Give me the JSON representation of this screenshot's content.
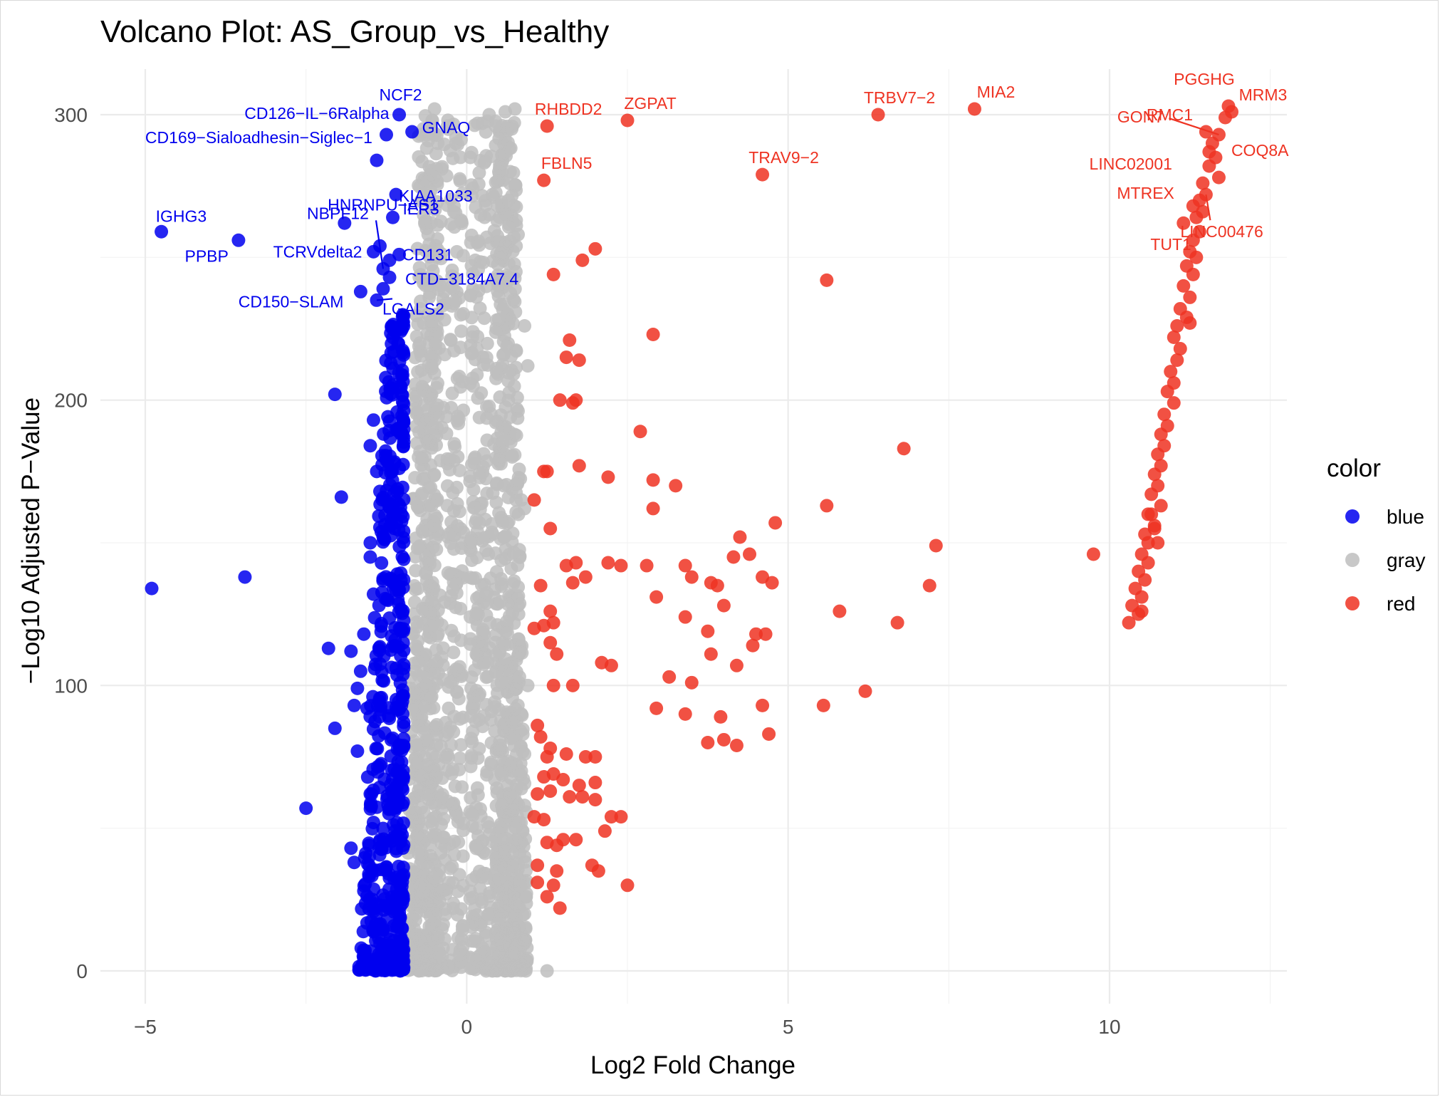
{
  "chart_data": {
    "type": "scatter",
    "title": "Volcano Plot: AS_Group_vs_Healthy",
    "xlabel": "Log2 Fold Change",
    "ylabel": "−Log10 Adjusted P−Value",
    "xlim": [
      -5.7,
      12.7
    ],
    "ylim": [
      -13,
      315
    ],
    "x_ticks": [
      -5,
      0,
      5,
      10
    ],
    "x_tick_labels": [
      "−5",
      "0",
      "5",
      "10"
    ],
    "y_ticks": [
      0,
      100,
      200,
      300
    ],
    "y_tick_labels": [
      "0",
      "100",
      "200",
      "300"
    ],
    "grid": true,
    "legend": {
      "title": "color",
      "position": "right",
      "entries": [
        {
          "label": "blue",
          "color": "#0000ee"
        },
        {
          "label": "gray",
          "color": "#bebebe"
        },
        {
          "label": "red",
          "color": "#ee3322"
        }
      ]
    },
    "colors": {
      "blue": "#0000ee",
      "gray": "#bebebe",
      "red": "#ee3322"
    },
    "series": [
      {
        "name": "red",
        "points": [
          [
            1.25,
            296
          ],
          [
            2.5,
            298
          ],
          [
            6.4,
            300
          ],
          [
            7.9,
            302
          ],
          [
            4.6,
            279
          ],
          [
            1.2,
            277
          ],
          [
            1.35,
            244
          ],
          [
            1.8,
            249
          ],
          [
            2.0,
            253
          ],
          [
            5.6,
            242
          ],
          [
            2.9,
            223
          ],
          [
            1.6,
            221
          ],
          [
            1.55,
            215
          ],
          [
            1.75,
            214
          ],
          [
            1.45,
            200
          ],
          [
            1.65,
            199
          ],
          [
            1.7,
            200
          ],
          [
            2.7,
            189
          ],
          [
            6.8,
            183
          ],
          [
            1.2,
            175
          ],
          [
            1.25,
            175
          ],
          [
            1.75,
            177
          ],
          [
            2.2,
            173
          ],
          [
            2.9,
            172
          ],
          [
            3.25,
            170
          ],
          [
            1.05,
            165
          ],
          [
            2.9,
            162
          ],
          [
            5.6,
            163
          ],
          [
            4.8,
            157
          ],
          [
            1.3,
            155
          ],
          [
            4.25,
            152
          ],
          [
            7.3,
            149
          ],
          [
            4.4,
            146
          ],
          [
            4.15,
            145
          ],
          [
            1.55,
            142
          ],
          [
            1.7,
            143
          ],
          [
            2.2,
            143
          ],
          [
            2.4,
            142
          ],
          [
            2.8,
            142
          ],
          [
            3.4,
            142
          ],
          [
            1.15,
            135
          ],
          [
            1.65,
            136
          ],
          [
            1.85,
            138
          ],
          [
            3.5,
            138
          ],
          [
            3.8,
            136
          ],
          [
            3.9,
            135
          ],
          [
            4.6,
            138
          ],
          [
            4.75,
            136
          ],
          [
            7.2,
            135
          ],
          [
            2.95,
            131
          ],
          [
            4.0,
            128
          ],
          [
            5.8,
            126
          ],
          [
            1.3,
            126
          ],
          [
            1.05,
            120
          ],
          [
            1.2,
            121
          ],
          [
            1.35,
            122
          ],
          [
            3.4,
            124
          ],
          [
            3.75,
            119
          ],
          [
            4.5,
            118
          ],
          [
            4.65,
            118
          ],
          [
            6.7,
            122
          ],
          [
            1.3,
            115
          ],
          [
            1.4,
            111
          ],
          [
            3.8,
            111
          ],
          [
            4.45,
            114
          ],
          [
            2.1,
            108
          ],
          [
            2.25,
            107
          ],
          [
            4.2,
            107
          ],
          [
            1.35,
            100
          ],
          [
            1.65,
            100
          ],
          [
            3.15,
            103
          ],
          [
            3.5,
            101
          ],
          [
            6.2,
            98
          ],
          [
            2.95,
            92
          ],
          [
            3.4,
            90
          ],
          [
            3.95,
            89
          ],
          [
            4.6,
            93
          ],
          [
            5.55,
            93
          ],
          [
            4.7,
            83
          ],
          [
            3.75,
            80
          ],
          [
            4.0,
            81
          ],
          [
            4.2,
            79
          ],
          [
            1.1,
            86
          ],
          [
            1.15,
            82
          ],
          [
            1.3,
            78
          ],
          [
            1.25,
            75
          ],
          [
            1.55,
            76
          ],
          [
            1.85,
            75
          ],
          [
            2.0,
            75
          ],
          [
            1.2,
            68
          ],
          [
            1.35,
            69
          ],
          [
            1.5,
            67
          ],
          [
            1.75,
            65
          ],
          [
            2.0,
            66
          ],
          [
            1.1,
            62
          ],
          [
            1.3,
            63
          ],
          [
            1.6,
            61
          ],
          [
            1.8,
            61
          ],
          [
            2.0,
            60
          ],
          [
            1.05,
            54
          ],
          [
            1.2,
            53
          ],
          [
            2.25,
            54
          ],
          [
            2.4,
            54
          ],
          [
            1.25,
            45
          ],
          [
            1.4,
            44
          ],
          [
            1.5,
            46
          ],
          [
            1.7,
            46
          ],
          [
            2.15,
            49
          ],
          [
            1.1,
            37
          ],
          [
            1.4,
            35
          ],
          [
            1.95,
            37
          ],
          [
            2.05,
            35
          ],
          [
            1.1,
            31
          ],
          [
            1.35,
            30
          ],
          [
            2.5,
            30
          ],
          [
            1.25,
            26
          ],
          [
            1.45,
            22
          ],
          [
            9.75,
            146
          ],
          [
            11.85,
            303
          ],
          [
            11.9,
            301
          ],
          [
            11.8,
            299
          ],
          [
            11.7,
            293
          ],
          [
            11.6,
            290
          ],
          [
            11.5,
            294
          ],
          [
            11.65,
            285
          ],
          [
            11.55,
            282
          ],
          [
            11.7,
            278
          ],
          [
            11.45,
            276
          ],
          [
            11.5,
            272
          ],
          [
            11.4,
            270
          ],
          [
            11.45,
            266
          ],
          [
            11.35,
            264
          ],
          [
            11.4,
            259
          ],
          [
            11.3,
            256
          ],
          [
            11.25,
            252
          ],
          [
            11.35,
            250
          ],
          [
            11.2,
            247
          ],
          [
            11.3,
            244
          ],
          [
            11.15,
            240
          ],
          [
            11.25,
            236
          ],
          [
            11.1,
            232
          ],
          [
            11.2,
            229
          ],
          [
            11.05,
            226
          ],
          [
            11.25,
            227
          ],
          [
            11.0,
            222
          ],
          [
            11.1,
            218
          ],
          [
            11.05,
            214
          ],
          [
            10.95,
            210
          ],
          [
            11.0,
            206
          ],
          [
            10.9,
            203
          ],
          [
            11.0,
            199
          ],
          [
            10.85,
            195
          ],
          [
            10.9,
            191
          ],
          [
            10.8,
            188
          ],
          [
            10.85,
            184
          ],
          [
            10.75,
            181
          ],
          [
            10.8,
            177
          ],
          [
            10.7,
            174
          ],
          [
            10.75,
            170
          ],
          [
            10.65,
            167
          ],
          [
            10.8,
            163
          ],
          [
            10.6,
            160
          ],
          [
            10.7,
            156
          ],
          [
            10.55,
            153
          ],
          [
            10.6,
            150
          ],
          [
            10.75,
            150
          ],
          [
            10.5,
            146
          ],
          [
            10.6,
            143
          ],
          [
            10.45,
            140
          ],
          [
            10.55,
            137
          ],
          [
            10.4,
            134
          ],
          [
            10.5,
            131
          ],
          [
            10.35,
            128
          ],
          [
            10.45,
            125
          ],
          [
            10.3,
            122
          ],
          [
            10.5,
            126
          ],
          [
            10.7,
            155
          ],
          [
            10.65,
            160
          ],
          [
            11.15,
            262
          ],
          [
            11.3,
            268
          ],
          [
            11.55,
            287
          ]
        ]
      },
      {
        "name": "blue",
        "points": [
          [
            -4.75,
            259
          ],
          [
            -3.55,
            256
          ],
          [
            -1.05,
            300
          ],
          [
            -0.85,
            294
          ],
          [
            -1.25,
            293
          ],
          [
            -1.4,
            284
          ],
          [
            -1.1,
            272
          ],
          [
            -1.15,
            264
          ],
          [
            -1.9,
            262
          ],
          [
            -1.35,
            254
          ],
          [
            -1.45,
            252
          ],
          [
            -1.2,
            249
          ],
          [
            -1.05,
            251
          ],
          [
            -1.3,
            246
          ],
          [
            -1.2,
            243
          ],
          [
            -1.65,
            238
          ],
          [
            -1.3,
            239
          ],
          [
            -1.4,
            235
          ],
          [
            -4.9,
            134
          ],
          [
            -3.45,
            138
          ],
          [
            -2.05,
            202
          ],
          [
            -1.95,
            166
          ],
          [
            -2.15,
            113
          ],
          [
            -1.8,
            112
          ],
          [
            -2.05,
            85
          ],
          [
            -2.5,
            57
          ],
          [
            -1.7,
            99
          ],
          [
            -1.75,
            93
          ],
          [
            -1.45,
            193
          ],
          [
            -1.5,
            184
          ],
          [
            -1.4,
            175
          ],
          [
            -1.35,
            168
          ],
          [
            -1.5,
            145
          ],
          [
            -1.45,
            132
          ],
          [
            -1.6,
            118
          ],
          [
            -1.55,
            92
          ],
          [
            -1.7,
            77
          ],
          [
            -1.5,
            62
          ],
          [
            -1.8,
            43
          ],
          [
            -1.75,
            38
          ],
          [
            -1.6,
            28
          ],
          [
            -1.45,
            52
          ],
          [
            -1.35,
            72
          ],
          [
            -1.65,
            105
          ],
          [
            -1.5,
            150
          ]
        ]
      }
    ],
    "gray_region": {
      "description": "dense cloud of gray points between approximately -0.95 and 0.95 log2 fold change, -log10 adjusted p-value 0 to 300"
    },
    "gene_labels": [
      {
        "gene": "NCF2",
        "color": "blue",
        "x": -1.05,
        "y": 300
      },
      {
        "gene": "CD126−IL−6Ralpha",
        "color": "blue",
        "x": -1.05,
        "y": 300
      },
      {
        "gene": "GNAQ",
        "color": "blue",
        "x": -0.85,
        "y": 294
      },
      {
        "gene": "CD169−Sialoadhesin−Siglec−1",
        "color": "blue",
        "x": -1.4,
        "y": 284
      },
      {
        "gene": "NBPF12",
        "color": "blue",
        "x": -1.3,
        "y": 246
      },
      {
        "gene": "KIAA1033",
        "color": "blue",
        "x": -1.1,
        "y": 272
      },
      {
        "gene": "HNRNPU−AS1",
        "color": "blue",
        "x": -1.9,
        "y": 262
      },
      {
        "gene": "IER3",
        "color": "blue",
        "x": -1.15,
        "y": 264
      },
      {
        "gene": "IGHG3",
        "color": "blue",
        "x": -4.75,
        "y": 259
      },
      {
        "gene": "CD131",
        "color": "blue",
        "x": -1.2,
        "y": 249
      },
      {
        "gene": "TCRVdelta2",
        "color": "blue",
        "x": -1.45,
        "y": 252
      },
      {
        "gene": "PPBP",
        "color": "blue",
        "x": -3.55,
        "y": 256
      },
      {
        "gene": "CTD−3184A7.4",
        "color": "blue",
        "x": -1.2,
        "y": 243
      },
      {
        "gene": "CD150−SLAM",
        "color": "blue",
        "x": -1.65,
        "y": 238
      },
      {
        "gene": "LGALS2",
        "color": "blue",
        "x": -1.4,
        "y": 235
      },
      {
        "gene": "RHBDD2",
        "color": "red",
        "x": 1.25,
        "y": 296
      },
      {
        "gene": "ZGPAT",
        "color": "red",
        "x": 2.5,
        "y": 298
      },
      {
        "gene": "TRBV7−2",
        "color": "red",
        "x": 6.4,
        "y": 300
      },
      {
        "gene": "MIA2",
        "color": "red",
        "x": 7.9,
        "y": 302
      },
      {
        "gene": "FBLN5",
        "color": "red",
        "x": 1.2,
        "y": 277
      },
      {
        "gene": "TRAV9−2",
        "color": "red",
        "x": 4.6,
        "y": 279
      },
      {
        "gene": "PGGHG",
        "color": "red",
        "x": 11.85,
        "y": 303
      },
      {
        "gene": "MRM3",
        "color": "red",
        "x": 11.9,
        "y": 301
      },
      {
        "gene": "GON7",
        "color": "red",
        "x": 11.7,
        "y": 293
      },
      {
        "gene": "RMC1",
        "color": "red",
        "x": 11.6,
        "y": 290
      },
      {
        "gene": "LINC02001",
        "color": "red",
        "x": 11.55,
        "y": 282
      },
      {
        "gene": "COQ8A",
        "color": "red",
        "x": 11.65,
        "y": 285
      },
      {
        "gene": "MTREX",
        "color": "red",
        "x": 11.45,
        "y": 276
      },
      {
        "gene": "LINC00476",
        "color": "red",
        "x": 11.5,
        "y": 272
      },
      {
        "gene": "TUT1",
        "color": "red",
        "x": 11.3,
        "y": 264
      }
    ]
  }
}
